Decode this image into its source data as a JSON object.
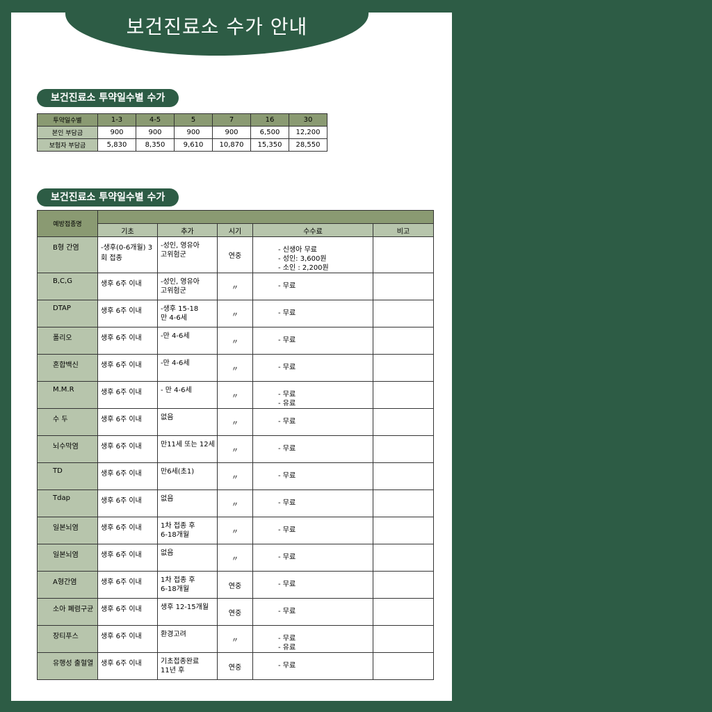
{
  "title": "보건진료소 수가 안내",
  "section1_title": "보건진료소 투약일수별 수가",
  "section2_title": "보건진료소 투약일수별 수가",
  "fee_table": {
    "header": [
      "투약일수별",
      "1-3",
      "4-5",
      "5",
      "7",
      "16",
      "30"
    ],
    "rows": [
      [
        "본인 부담금",
        "900",
        "900",
        "900",
        "900",
        "6,500",
        "12,200"
      ],
      [
        "보험자 부담금",
        "5,830",
        "8,350",
        "9,610",
        "10,870",
        "15,350",
        "28,550"
      ]
    ]
  },
  "vaccine_table": {
    "name_header": "예방접종명",
    "columns": [
      "기초",
      "추가",
      "시기",
      "수수료",
      "비고"
    ],
    "rows": [
      {
        "name": "B형 간염",
        "basic": "-생후(0-6개월) 3회 접종",
        "add": "-성인, 영유아\n  고위험군",
        "time": "연중",
        "fee": "- 신생아 무료\n- 성인: 3,600원\n- 소인 : 2,200원",
        "note": ""
      },
      {
        "name": "B,C,G",
        "basic": "생후 6주 이내",
        "add": "-성인, 영유아\n  고위험군",
        "time": "〃",
        "fee": "- 무료",
        "note": ""
      },
      {
        "name": "DTAP",
        "basic": "생후 6주 이내",
        "add": "-생후 15-18\n  만 4-6세",
        "time": "〃",
        "fee": "- 무료",
        "note": ""
      },
      {
        "name": "폴리오",
        "basic": "생후 6주 이내",
        "add": "-만 4-6세",
        "time": "〃",
        "fee": "- 무료",
        "note": ""
      },
      {
        "name": "혼합백신",
        "basic": "생후 6주 이내",
        "add": "-만 4-6세",
        "time": "〃",
        "fee": "- 무료",
        "note": ""
      },
      {
        "name": "M.M.R",
        "basic": "생후 6주 이내",
        "add": "- 만 4-6세",
        "time": "〃",
        "fee": "- 무료\n- 유료",
        "note": ""
      },
      {
        "name": "수 두",
        "basic": "생후 6주 이내",
        "add": "     없음",
        "time": "〃",
        "fee": "- 무료",
        "note": ""
      },
      {
        "name": "뇌수막염",
        "basic": "생후 6주 이내",
        "add": "만11세 또는 12세",
        "time": "〃",
        "fee": "- 무료",
        "note": ""
      },
      {
        "name": "TD",
        "basic": "생후 6주 이내",
        "add": "만6세(초1)",
        "time": "〃",
        "fee": "- 무료",
        "note": ""
      },
      {
        "name": "Tdap",
        "basic": "생후 6주 이내",
        "add": "없음",
        "time": "〃",
        "fee": "- 무료",
        "note": ""
      },
      {
        "name": "일본뇌염",
        "basic": "생후 6주 이내",
        "add": "1차 접종 후\n6-18개월",
        "time": "〃",
        "fee": "- 무료",
        "note": ""
      },
      {
        "name": "일본뇌염",
        "basic": "생후 6주 이내",
        "add": "없음",
        "time": "〃",
        "fee": "- 무료",
        "note": ""
      },
      {
        "name": "A형간염",
        "basic": "생후 6주 이내",
        "add": "1차 접종 후\n6-18개월",
        "time": "연중",
        "fee": "- 무료",
        "note": ""
      },
      {
        "name": "소아 폐렴구균",
        "basic": "생후 6주 이내",
        "add": "생후 12-15개월",
        "time": "연중",
        "fee": "- 무료",
        "note": ""
      },
      {
        "name": "장티푸스",
        "basic": "생후 6주 이내",
        "add": "환경고려",
        "time": "〃",
        "fee": "- 무료\n- 유료",
        "note": ""
      },
      {
        "name": "유행성 출혈열",
        "basic": "생후 6주 이내",
        "add": "기초접종완료\n11년 후",
        "time": "연중",
        "fee": "- 무료",
        "note": ""
      }
    ]
  }
}
